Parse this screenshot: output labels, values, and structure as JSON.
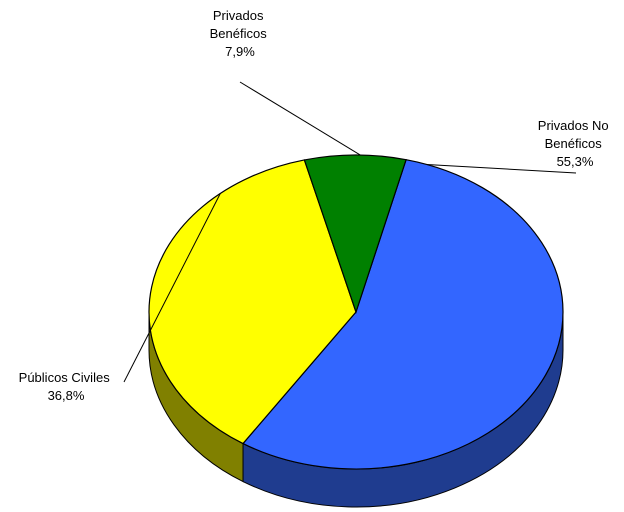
{
  "chart_data": {
    "type": "pie",
    "title": "",
    "style": "3d",
    "slices": [
      {
        "label_lines": [
          "Privados No",
          "Benéficos"
        ],
        "pct_label": "55,3%",
        "value": 55.3,
        "color": "#3366FF",
        "side_color": "#1F3C8F"
      },
      {
        "label_lines": [
          "Públicos Civiles"
        ],
        "pct_label": "36,8%",
        "value": 36.8,
        "color": "#FFFF00",
        "side_color": "#808000"
      },
      {
        "label_lines": [
          "Privados",
          "Benéficos"
        ],
        "pct_label": "7,9%",
        "value": 7.9,
        "color": "#008000",
        "side_color": "#004000"
      }
    ]
  }
}
